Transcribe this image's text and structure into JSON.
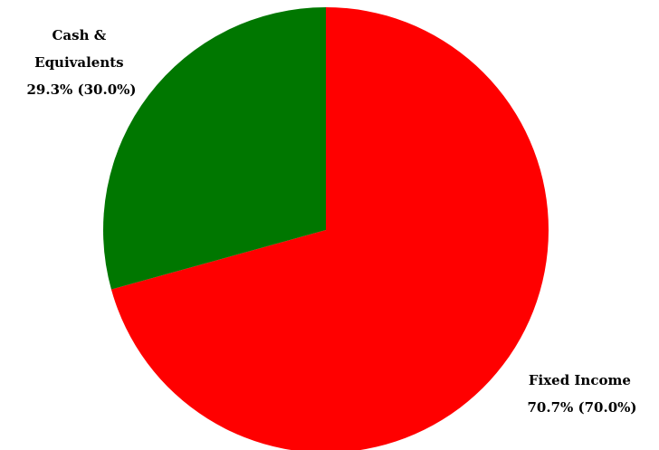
{
  "chart_data": {
    "type": "pie",
    "title": "",
    "slices": [
      {
        "name": "Fixed Income",
        "label_lines": [
          "Fixed Income",
          "70.7% (70.0%)"
        ],
        "value": 70.7,
        "target": 70.0,
        "color": "#ff0000"
      },
      {
        "name": "Cash & Equivalents",
        "label_lines": [
          "Cash &",
          "Equivalents",
          "29.3% (30.0%)"
        ],
        "value": 29.3,
        "target": 30.0,
        "color": "#007700"
      }
    ],
    "start": "12 o'clock",
    "direction": "clockwise",
    "legend": "none"
  }
}
